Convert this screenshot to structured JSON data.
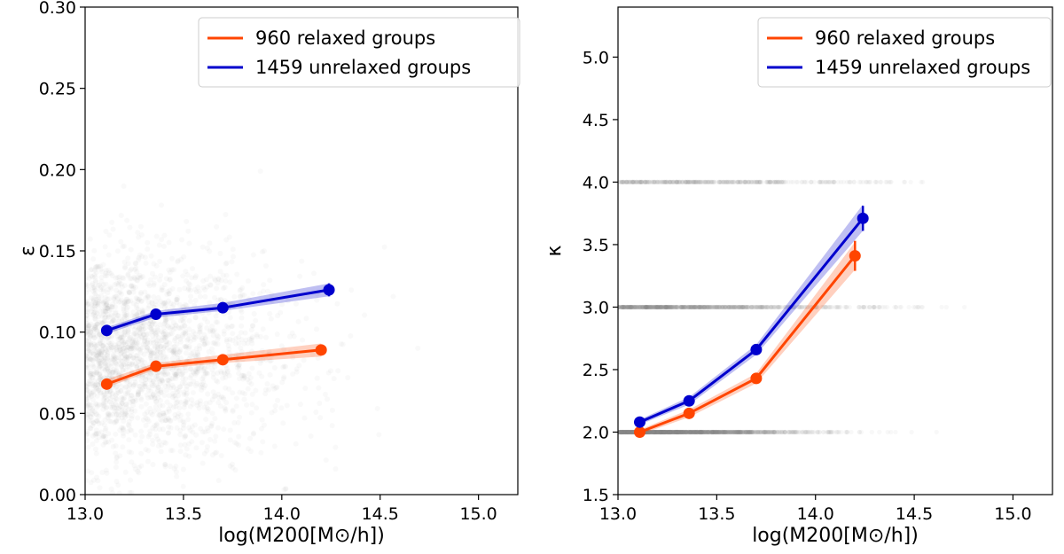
{
  "chart_data": [
    {
      "type": "scatter",
      "xlabel": "log(M200[M⊙/h])",
      "ylabel": "ε",
      "xlim": [
        13.0,
        15.2
      ],
      "ylim": [
        0.0,
        0.3
      ],
      "xticks": [
        "13.0",
        "13.5",
        "14.0",
        "14.5",
        "15.0"
      ],
      "yticks": [
        "0.00",
        "0.05",
        "0.10",
        "0.15",
        "0.20",
        "0.25",
        "0.30"
      ],
      "legend_position": "top-right",
      "grid": false,
      "series": [
        {
          "name": "960 relaxed groups",
          "color": "#FF4500",
          "x": [
            13.11,
            13.36,
            13.7,
            14.2
          ],
          "y": [
            0.068,
            0.079,
            0.083,
            0.089
          ],
          "band_low": [
            0.066,
            0.077,
            0.081,
            0.085
          ],
          "band_high": [
            0.071,
            0.081,
            0.086,
            0.093
          ],
          "err": [
            0.002,
            0.002,
            0.002,
            0.003
          ]
        },
        {
          "name": "1459 unrelaxed groups",
          "color": "#0000CD",
          "x": [
            13.11,
            13.36,
            13.7,
            14.24
          ],
          "y": [
            0.101,
            0.111,
            0.115,
            0.126
          ],
          "band_low": [
            0.099,
            0.109,
            0.113,
            0.122
          ],
          "band_high": [
            0.103,
            0.113,
            0.118,
            0.13
          ],
          "err": [
            0.002,
            0.002,
            0.002,
            0.004
          ]
        }
      ]
    },
    {
      "type": "scatter",
      "xlabel": "log(M200[M⊙/h])",
      "ylabel": "κ",
      "xlim": [
        13.0,
        15.2
      ],
      "ylim": [
        1.5,
        5.4
      ],
      "xticks": [
        "13.0",
        "13.5",
        "14.0",
        "14.5",
        "15.0"
      ],
      "yticks": [
        "1.5",
        "2.0",
        "2.5",
        "3.0",
        "3.5",
        "4.0",
        "4.5",
        "5.0"
      ],
      "legend_position": "top-right",
      "grid": false,
      "series": [
        {
          "name": "960 relaxed groups",
          "color": "#FF4500",
          "x": [
            13.11,
            13.36,
            13.7,
            14.2
          ],
          "y": [
            2.0,
            2.15,
            2.43,
            3.41
          ],
          "band_low": [
            1.98,
            2.12,
            2.39,
            3.3
          ],
          "band_high": [
            2.02,
            2.18,
            2.47,
            3.52
          ],
          "err": [
            0.02,
            0.03,
            0.03,
            0.12
          ]
        },
        {
          "name": "1459 unrelaxed groups",
          "color": "#0000CD",
          "x": [
            13.11,
            13.36,
            13.7,
            14.24
          ],
          "y": [
            2.08,
            2.25,
            2.66,
            3.71
          ],
          "band_low": [
            2.06,
            2.22,
            2.62,
            3.61
          ],
          "band_high": [
            2.1,
            2.28,
            2.7,
            3.82
          ],
          "err": [
            0.02,
            0.02,
            0.03,
            0.1
          ]
        }
      ]
    }
  ]
}
